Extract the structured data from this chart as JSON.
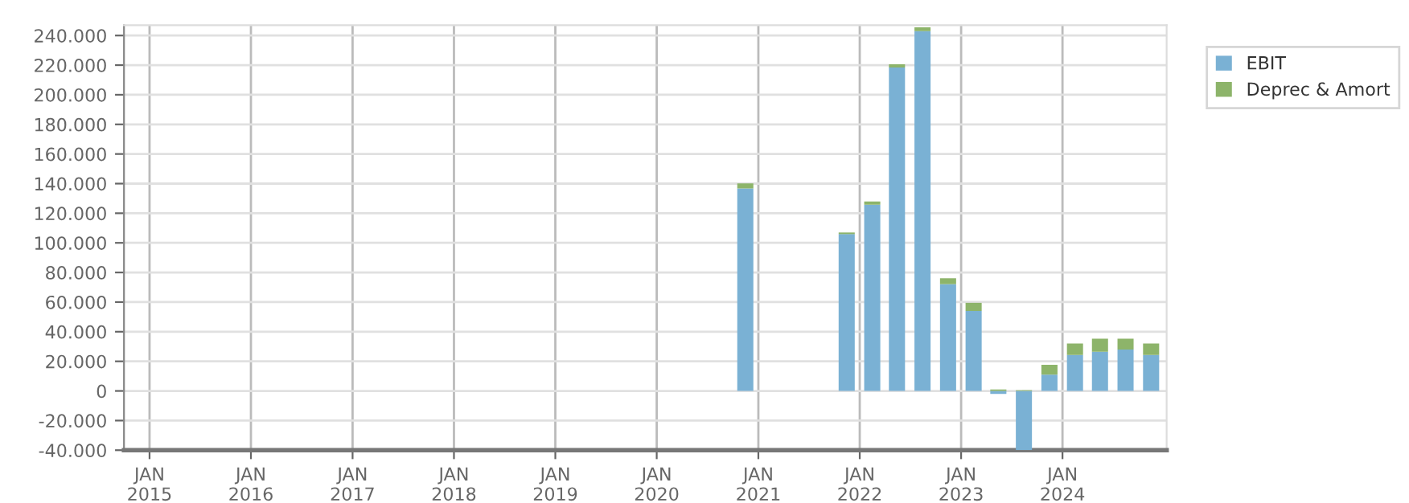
{
  "chart_data": {
    "type": "bar",
    "stacked": true,
    "x": [
      "2020-11-15",
      "2021-11-15",
      "2022-02-15",
      "2022-05-15",
      "2022-08-15",
      "2022-11-15",
      "2023-02-15",
      "2023-05-15",
      "2023-08-15",
      "2023-11-15",
      "2024-02-15",
      "2024-05-15",
      "2024-08-15",
      "2024-11-15"
    ],
    "series": [
      {
        "name": "EBIT",
        "color": "#7ab1d4",
        "values": [
          136800,
          105900,
          125700,
          218400,
          243000,
          72100,
          54000,
          -2000,
          -40000,
          11000,
          24300,
          26500,
          27900,
          24300
        ]
      },
      {
        "name": "Deprec & Amort",
        "color": "#8db46a",
        "values": [
          3300,
          1100,
          2200,
          2200,
          2500,
          4000,
          5500,
          1000,
          500,
          6600,
          7700,
          8800,
          7400,
          7700
        ]
      }
    ],
    "xlim": [
      "2014-10-01",
      "2025-01-10"
    ],
    "xticks": [
      {
        "value": "2015-01-01",
        "label": "JAN\n2015"
      },
      {
        "value": "2016-01-01",
        "label": "JAN\n2016"
      },
      {
        "value": "2017-01-01",
        "label": "JAN\n2017"
      },
      {
        "value": "2018-01-01",
        "label": "JAN\n2018"
      },
      {
        "value": "2019-01-01",
        "label": "JAN\n2019"
      },
      {
        "value": "2020-01-01",
        "label": "JAN\n2020"
      },
      {
        "value": "2021-01-01",
        "label": "JAN\n2021"
      },
      {
        "value": "2022-01-01",
        "label": "JAN\n2022"
      },
      {
        "value": "2023-01-01",
        "label": "JAN\n2023"
      },
      {
        "value": "2024-01-01",
        "label": "JAN\n2024"
      }
    ],
    "ylim": [
      -40000,
      247000
    ],
    "yticks": [
      {
        "value": -40000,
        "label": "-40.000"
      },
      {
        "value": -20000,
        "label": "-20.000"
      },
      0,
      {
        "value": 20000,
        "label": "20.000"
      },
      {
        "value": 40000,
        "label": "40.000"
      },
      {
        "value": 60000,
        "label": "60.000"
      },
      {
        "value": 80000,
        "label": "80.000"
      },
      {
        "value": 100000,
        "label": "100.000"
      },
      {
        "value": 120000,
        "label": "120.000"
      },
      {
        "value": 140000,
        "label": "140.000"
      },
      {
        "value": 160000,
        "label": "160.000"
      },
      {
        "value": 180000,
        "label": "180.000"
      },
      {
        "value": 200000,
        "label": "200.000"
      },
      {
        "value": 220000,
        "label": "220.000"
      },
      {
        "value": 240000,
        "label": "240.000"
      }
    ],
    "grid": true,
    "legend": "top right"
  }
}
